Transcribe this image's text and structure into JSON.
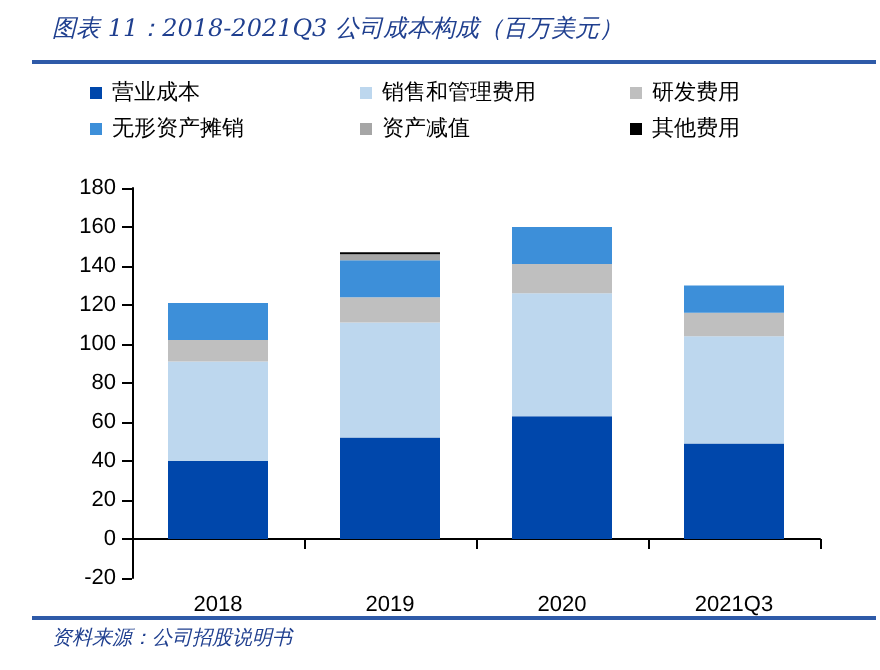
{
  "chart_data": {
    "type": "bar",
    "title": "图表 11：2018-2021Q3 公司成本构成（百万美元）",
    "annotations": [
      "资料来源：公司招股说明书"
    ],
    "categories": [
      "2018",
      "2019",
      "2020",
      "2021Q3"
    ],
    "stacked": true,
    "series": [
      {
        "name": "营业成本",
        "color": "#0047ab",
        "values": [
          40,
          52,
          63,
          49
        ]
      },
      {
        "name": "销售和管理费用",
        "color": "#bdd7ee",
        "values": [
          51,
          59,
          63,
          55
        ]
      },
      {
        "name": "研发费用",
        "color": "#bfbfbf",
        "values": [
          11,
          13,
          15,
          12
        ]
      },
      {
        "name": "无形资产摊销",
        "color": "#3d8fd9",
        "values": [
          19,
          19,
          19,
          14
        ]
      },
      {
        "name": "资产减值",
        "color": "#a6a6a6",
        "values": [
          0,
          3,
          0,
          0
        ]
      },
      {
        "name": "其他费用",
        "color": "#000000",
        "values": [
          0,
          1,
          0,
          0
        ]
      }
    ],
    "ylim": [
      -20,
      180
    ],
    "yticks": [
      -20,
      0,
      20,
      40,
      60,
      80,
      100,
      120,
      140,
      160,
      180
    ],
    "legend": "top"
  }
}
